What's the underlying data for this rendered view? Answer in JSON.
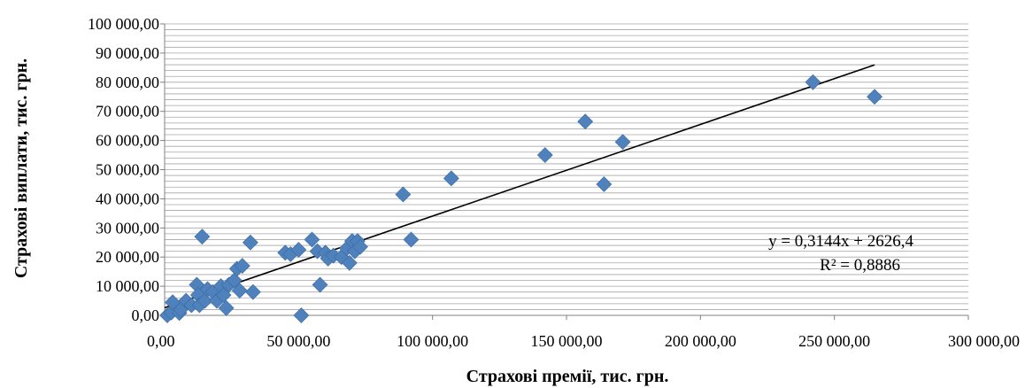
{
  "chart_data": {
    "type": "scatter",
    "xlabel": "Страхові премії, тис. грн.",
    "ylabel": "Страхові виплати, тис. грн.",
    "xlim": [
      0,
      300000
    ],
    "ylim": [
      0,
      100000
    ],
    "x_ticks": [
      "0,00",
      "50 000,00",
      "100 000,00",
      "150 000,00",
      "200 000,00",
      "250 000,00",
      "300 000,00"
    ],
    "y_ticks": [
      "0,00",
      "10 000,00",
      "20 000,00",
      "30 000,00",
      "40 000,00",
      "50 000,00",
      "60 000,00",
      "70 000,00",
      "80 000,00",
      "90 000,00",
      "100 000,00"
    ],
    "grid": true,
    "marker_color": "#4f81bd",
    "trendline_color": "#000000",
    "series": [
      {
        "points": [
          [
            1000,
            0
          ],
          [
            2500,
            1000
          ],
          [
            3000,
            4500
          ],
          [
            5500,
            800
          ],
          [
            6000,
            2000
          ],
          [
            8000,
            5000
          ],
          [
            10000,
            3500
          ],
          [
            12000,
            10500
          ],
          [
            12500,
            7000
          ],
          [
            13000,
            3500
          ],
          [
            14000,
            27000
          ],
          [
            15000,
            5000
          ],
          [
            16000,
            9000
          ],
          [
            18000,
            8000
          ],
          [
            19500,
            5000
          ],
          [
            21000,
            10000
          ],
          [
            22000,
            7000
          ],
          [
            23000,
            2500
          ],
          [
            24000,
            10500
          ],
          [
            26000,
            12000
          ],
          [
            27000,
            16000
          ],
          [
            28000,
            8500
          ],
          [
            29000,
            17000
          ],
          [
            32000,
            25000
          ],
          [
            33000,
            8000
          ],
          [
            45000,
            21500
          ],
          [
            47000,
            21000
          ],
          [
            50000,
            22500
          ],
          [
            51000,
            0
          ],
          [
            55000,
            26000
          ],
          [
            57000,
            22000
          ],
          [
            58000,
            10500
          ],
          [
            60000,
            21500
          ],
          [
            61000,
            19500
          ],
          [
            63000,
            20500
          ],
          [
            66000,
            20000
          ],
          [
            68000,
            23000
          ],
          [
            69000,
            18000
          ],
          [
            70000,
            25500
          ],
          [
            71000,
            22000
          ],
          [
            72000,
            25500
          ],
          [
            73000,
            23500
          ],
          [
            89000,
            41500
          ],
          [
            92000,
            26000
          ],
          [
            107000,
            47000
          ],
          [
            142000,
            55000
          ],
          [
            157000,
            66500
          ],
          [
            164000,
            45000
          ],
          [
            171000,
            59500
          ],
          [
            242000,
            80000
          ],
          [
            265000,
            75000
          ]
        ]
      }
    ],
    "trendline": {
      "slope": 0.3144,
      "intercept": 2626.4,
      "x_range": [
        0,
        265000
      ],
      "equation_label": "y = 0,3144x + 2626,4",
      "r2_label": "R² = 0,8886"
    }
  }
}
